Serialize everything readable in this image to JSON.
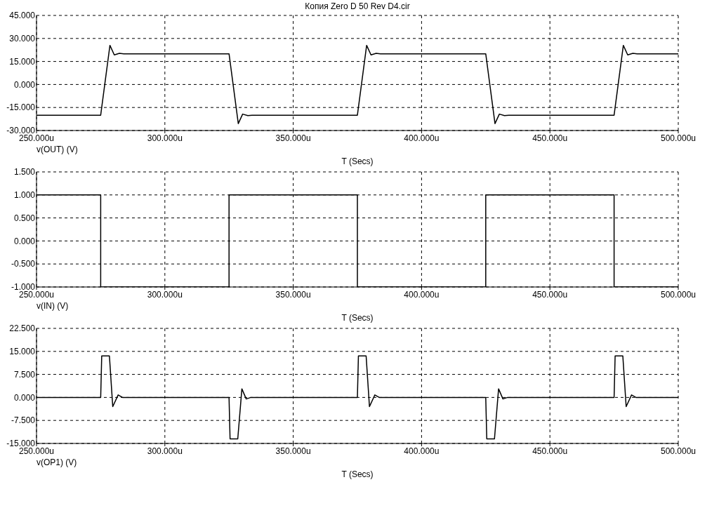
{
  "chart_data": [
    {
      "type": "line",
      "title": "Копия Zero D 50 Rev D4.cir",
      "xlabel": "T (Secs)",
      "legend": "bottom left",
      "grid": true,
      "line_style": "solid",
      "xlim": [
        250,
        500
      ],
      "xticks": [
        {
          "value": 250,
          "label": "250.000u"
        },
        {
          "value": 300,
          "label": "300.000u"
        },
        {
          "value": 350,
          "label": "350.000u"
        },
        {
          "value": 400,
          "label": "400.000u"
        },
        {
          "value": 450,
          "label": "450.000u"
        },
        {
          "value": 500,
          "label": "500.000u"
        }
      ],
      "ylim": [
        -30,
        45
      ],
      "yticks": [
        {
          "value": -30,
          "label": "-30.000"
        },
        {
          "value": -15,
          "label": "-15.000"
        },
        {
          "value": 0,
          "label": "0.000"
        },
        {
          "value": 15,
          "label": "15.000"
        },
        {
          "value": 30,
          "label": "30.000"
        },
        {
          "value": 45,
          "label": "45.000"
        }
      ],
      "x": [
        250,
        275,
        278.6,
        280.3,
        282.3,
        284,
        325,
        328.6,
        330.3,
        332.3,
        334,
        375,
        378.6,
        380.3,
        382.3,
        384,
        425,
        428.6,
        430.3,
        432.3,
        434,
        475,
        478.6,
        480.3,
        482.3,
        484,
        500
      ],
      "series": [
        {
          "name": "v(OUT) (V)",
          "color": "#000000",
          "values": [
            -20,
            -20,
            25.5,
            19.3,
            20.3,
            20,
            20,
            -25.5,
            -19.3,
            -20.3,
            -20,
            -20,
            25.5,
            19.3,
            20.3,
            20,
            20,
            -25.5,
            -19.3,
            -20.3,
            -20,
            -20,
            25.5,
            19.3,
            20.3,
            20,
            20
          ]
        }
      ]
    },
    {
      "type": "step",
      "xlabel": "T (Secs)",
      "legend": "bottom left",
      "grid": true,
      "line_style": "solid",
      "xlim": [
        250,
        500
      ],
      "xticks": [
        {
          "value": 250,
          "label": "250.000u"
        },
        {
          "value": 300,
          "label": "300.000u"
        },
        {
          "value": 350,
          "label": "350.000u"
        },
        {
          "value": 400,
          "label": "400.000u"
        },
        {
          "value": 450,
          "label": "450.000u"
        },
        {
          "value": 500,
          "label": "500.000u"
        }
      ],
      "ylim": [
        -1,
        1.5
      ],
      "yticks": [
        {
          "value": -1,
          "label": "-1.000"
        },
        {
          "value": -0.5,
          "label": "-0.500"
        },
        {
          "value": 0,
          "label": "0.000"
        },
        {
          "value": 0.5,
          "label": "0.500"
        },
        {
          "value": 1,
          "label": "1.000"
        },
        {
          "value": 1.5,
          "label": "1.500"
        }
      ],
      "x": [
        250,
        275,
        325,
        375,
        425,
        475,
        500
      ],
      "series": [
        {
          "name": "v(IN) (V)",
          "color": "#000000",
          "values": [
            1,
            -1,
            1,
            -1,
            1,
            -1,
            -1
          ]
        }
      ]
    },
    {
      "type": "line",
      "xlabel": "T (Secs)",
      "legend": "bottom left",
      "grid": true,
      "line_style": "solid",
      "xlim": [
        250,
        500
      ],
      "xticks": [
        {
          "value": 250,
          "label": "250.000u"
        },
        {
          "value": 300,
          "label": "300.000u"
        },
        {
          "value": 350,
          "label": "350.000u"
        },
        {
          "value": 400,
          "label": "400.000u"
        },
        {
          "value": 450,
          "label": "450.000u"
        },
        {
          "value": 500,
          "label": "500.000u"
        }
      ],
      "ylim": [
        -15,
        22.5
      ],
      "yticks": [
        {
          "value": -15,
          "label": "-15.000"
        },
        {
          "value": -7.5,
          "label": "-7.500"
        },
        {
          "value": 0,
          "label": "0.000"
        },
        {
          "value": 7.5,
          "label": "7.500"
        },
        {
          "value": 15,
          "label": "15.000"
        },
        {
          "value": 22.5,
          "label": "22.500"
        }
      ],
      "x": [
        250,
        275,
        275.4,
        278.4,
        279.7,
        281.8,
        283.5,
        325,
        325.4,
        328.4,
        330,
        331.7,
        333.5,
        375,
        375.4,
        378.4,
        379.7,
        381.8,
        383.5,
        425,
        425.4,
        428.4,
        430,
        431.7,
        433.5,
        475,
        475.4,
        478.4,
        479.7,
        481.8,
        483.5,
        500
      ],
      "series": [
        {
          "name": "v(OP1) (V)",
          "color": "#000000",
          "values": [
            0,
            0,
            13.5,
            13.5,
            -3,
            0.8,
            0,
            0,
            -13.5,
            -13.5,
            2.8,
            -0.5,
            0,
            0,
            13.5,
            13.5,
            -3,
            0.8,
            0,
            0,
            -13.5,
            -13.5,
            2.8,
            -0.5,
            0,
            0,
            13.5,
            13.5,
            -3,
            0.8,
            0,
            0
          ]
        }
      ]
    }
  ]
}
